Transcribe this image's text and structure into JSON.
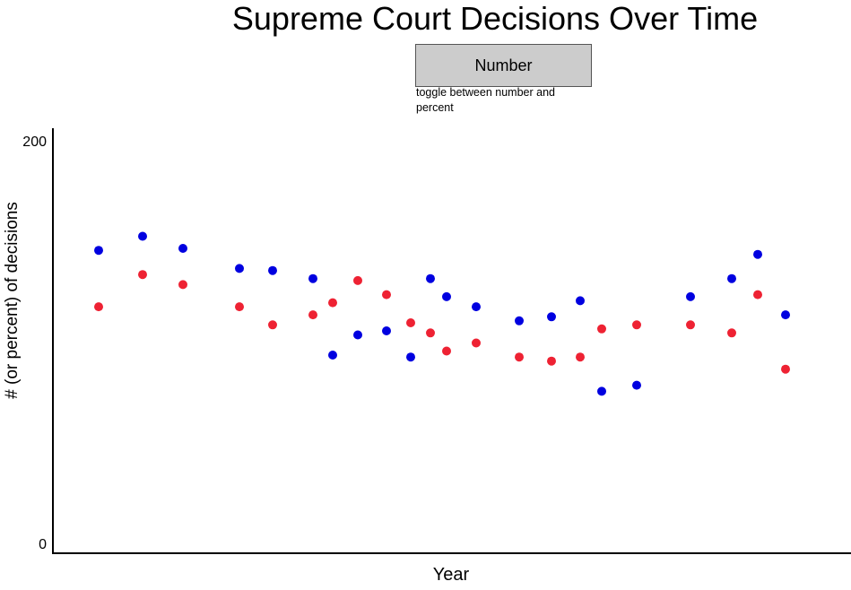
{
  "title": "Supreme Court Decisions Over Time",
  "toggle": {
    "label": "Number",
    "caption": "toggle between number and percent"
  },
  "colors": {
    "series_blue": "#0000e0",
    "series_red": "#ee2233",
    "button_bg": "#cccccc"
  },
  "chart_data": {
    "type": "scatter",
    "xlabel": "Year",
    "ylabel": "# (or percent) of decisions",
    "ylim": [
      0,
      200
    ],
    "yticks": [
      "0",
      "200"
    ],
    "grid": false,
    "series": [
      {
        "color": "#0000e0",
        "points": [
          [
            1,
            146
          ],
          [
            2,
            153
          ],
          [
            3,
            147
          ],
          [
            4,
            137
          ],
          [
            5,
            136
          ],
          [
            6,
            132
          ],
          [
            7,
            94
          ],
          [
            8,
            104
          ],
          [
            9,
            106
          ],
          [
            10,
            93
          ],
          [
            11,
            132
          ],
          [
            12,
            123
          ],
          [
            13,
            118
          ],
          [
            14,
            111
          ],
          [
            15,
            113
          ],
          [
            16,
            121
          ],
          [
            17,
            76
          ],
          [
            18,
            79
          ],
          [
            19,
            123
          ],
          [
            20,
            132
          ],
          [
            21,
            144
          ],
          [
            22,
            114
          ]
        ]
      },
      {
        "color": "#ee2233",
        "points": [
          [
            1,
            118
          ],
          [
            2,
            134
          ],
          [
            3,
            129
          ],
          [
            4,
            118
          ],
          [
            5,
            109
          ],
          [
            6,
            114
          ],
          [
            7,
            120
          ],
          [
            8,
            131
          ],
          [
            9,
            124
          ],
          [
            10,
            110
          ],
          [
            11,
            105
          ],
          [
            12,
            96
          ],
          [
            13,
            100
          ],
          [
            14,
            93
          ],
          [
            15,
            91
          ],
          [
            16,
            93
          ],
          [
            17,
            107
          ],
          [
            18,
            109
          ],
          [
            19,
            109
          ],
          [
            20,
            105
          ],
          [
            21,
            124
          ],
          [
            22,
            87
          ]
        ]
      }
    ]
  }
}
